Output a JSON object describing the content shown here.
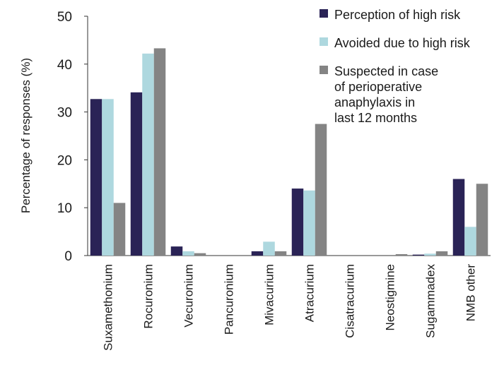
{
  "chart_data": {
    "type": "bar",
    "ylabel": "Percentage of responses (%)",
    "xlabel": "",
    "ylim": [
      0,
      50
    ],
    "yticks": [
      0,
      10,
      20,
      30,
      40,
      50
    ],
    "grid": false,
    "legend_position": "top-right",
    "categories": [
      "Suxamethonium",
      "Rocuronium",
      "Vecuronium",
      "Pancuronium",
      "Mivacurium",
      "Atracurium",
      "Cisatracurium",
      "Neostigmine",
      "Sugammadex",
      "NMB other"
    ],
    "series": [
      {
        "name": "Perception of high risk",
        "color": "#2a2356",
        "values": [
          32.7,
          34.1,
          1.9,
          0,
          0.9,
          14.0,
          0,
          0,
          0.2,
          16.0
        ]
      },
      {
        "name": "Avoided due to high risk",
        "color": "#aed8df",
        "values": [
          32.7,
          42.2,
          0.9,
          0,
          2.9,
          13.6,
          0,
          0,
          0.4,
          6.0
        ]
      },
      {
        "name_lines": [
          "Suspected in case",
          "of perioperative",
          "anaphylaxis in",
          "last 12 months"
        ],
        "color": "#848484",
        "values": [
          11.0,
          43.3,
          0.5,
          0,
          0.9,
          27.5,
          0,
          0.3,
          0.9,
          15.0
        ]
      }
    ]
  }
}
